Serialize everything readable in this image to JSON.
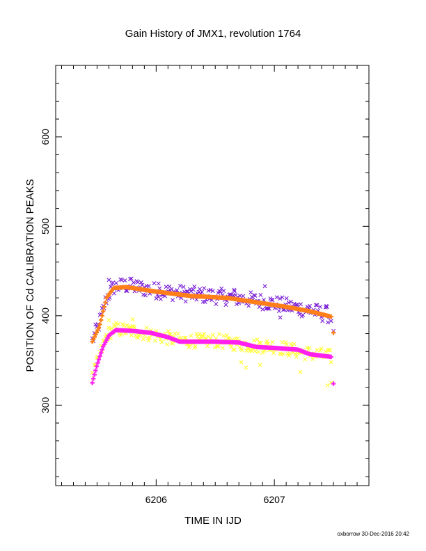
{
  "chart_data": {
    "type": "scatter",
    "title": "Gain History of JMX1, revolution 1764",
    "xlabel": "TIME IN IJD",
    "ylabel": "POSITION OF Cd CALIBRATION PEAKS",
    "xlim": [
      6205.15,
      6207.8
    ],
    "ylim": [
      210,
      680
    ],
    "x_ticks": [
      6206,
      6207
    ],
    "x_tick_labels": [
      "6206",
      "6207"
    ],
    "y_ticks": [
      300,
      400,
      500,
      600
    ],
    "y_tick_labels": [
      "300",
      "400",
      "500",
      "600"
    ],
    "grid": false,
    "footer": "oxborrow 30-Dec-2016 20:42",
    "colors": {
      "purple": "#7a1fd6",
      "orange": "#ff7f1a",
      "yellow": "#ffff33",
      "magenta": "#ff20f0"
    },
    "series": [
      {
        "color": "purple",
        "marker": "x",
        "trend": [
          [
            6205.46,
            372
          ],
          [
            6205.52,
            392
          ],
          [
            6205.58,
            420
          ],
          [
            6205.64,
            432
          ],
          [
            6205.75,
            434
          ],
          [
            6206.0,
            428
          ],
          [
            6206.3,
            424
          ],
          [
            6206.6,
            421
          ],
          [
            6206.9,
            416
          ],
          [
            6207.1,
            411
          ],
          [
            6207.3,
            406
          ],
          [
            6207.48,
            400
          ]
        ],
        "scatter": 9,
        "outliers": [
          [
            6205.6,
            440
          ],
          [
            6205.78,
            441
          ],
          [
            6206.02,
            436
          ],
          [
            6206.66,
            429
          ],
          [
            6206.92,
            433
          ],
          [
            6207.05,
            398
          ],
          [
            6207.3,
            411
          ],
          [
            6207.44,
            411
          ],
          [
            6207.5,
            383
          ]
        ]
      },
      {
        "color": "orange",
        "marker": "+",
        "trend": [
          [
            6205.46,
            371
          ],
          [
            6205.52,
            388
          ],
          [
            6205.58,
            420
          ],
          [
            6205.64,
            431
          ],
          [
            6205.75,
            432
          ],
          [
            6206.0,
            427
          ],
          [
            6206.3,
            422
          ],
          [
            6206.6,
            420
          ],
          [
            6206.9,
            414
          ],
          [
            6207.1,
            410
          ],
          [
            6207.3,
            405
          ],
          [
            6207.48,
            399
          ]
        ],
        "scatter": 0,
        "outliers": [
          [
            6207.5,
            381
          ]
        ]
      },
      {
        "color": "yellow",
        "marker": "x",
        "trend": [
          [
            6205.46,
            330
          ],
          [
            6205.52,
            355
          ],
          [
            6205.58,
            378
          ],
          [
            6205.64,
            385
          ],
          [
            6205.8,
            383
          ],
          [
            6206.0,
            378
          ],
          [
            6206.2,
            372
          ],
          [
            6206.5,
            372
          ],
          [
            6206.8,
            367
          ],
          [
            6207.0,
            366
          ],
          [
            6207.2,
            360
          ],
          [
            6207.48,
            354
          ]
        ],
        "scatter": 8,
        "outliers": [
          [
            6205.6,
            395
          ],
          [
            6205.8,
            396
          ],
          [
            6206.72,
            348
          ],
          [
            6206.76,
            342
          ],
          [
            6206.88,
            345
          ],
          [
            6207.22,
            337
          ],
          [
            6207.45,
            322
          ],
          [
            6207.48,
            325
          ]
        ]
      },
      {
        "color": "magenta",
        "marker": "+",
        "trend": [
          [
            6205.46,
            325
          ],
          [
            6205.5,
            345
          ],
          [
            6205.55,
            365
          ],
          [
            6205.6,
            378
          ],
          [
            6205.66,
            384
          ],
          [
            6205.8,
            383
          ],
          [
            6205.95,
            381
          ],
          [
            6206.1,
            376
          ],
          [
            6206.2,
            371
          ],
          [
            6206.5,
            371
          ],
          [
            6206.7,
            370
          ],
          [
            6206.85,
            365
          ],
          [
            6207.0,
            364
          ],
          [
            6207.2,
            362
          ],
          [
            6207.3,
            357
          ],
          [
            6207.48,
            354
          ]
        ],
        "scatter": 0,
        "outliers": [
          [
            6207.5,
            324
          ]
        ]
      }
    ]
  }
}
